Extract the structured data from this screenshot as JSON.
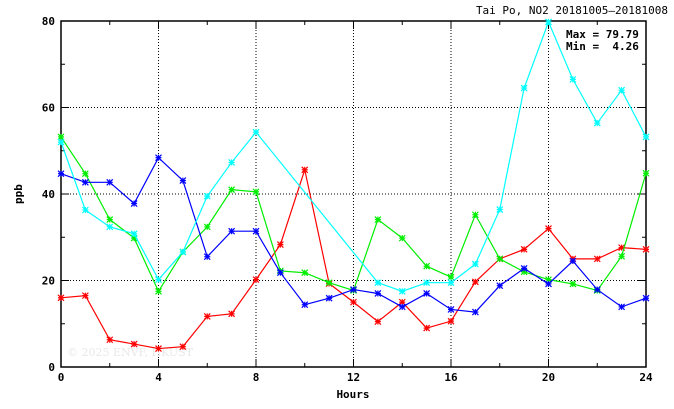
{
  "chart_data": {
    "type": "line",
    "title": "Tai Po, NO2 20181005–20181008",
    "xlabel": "Hours",
    "ylabel": "ppb",
    "xlim": [
      0,
      24
    ],
    "ylim": [
      0,
      80
    ],
    "xticks": [
      0,
      4,
      8,
      12,
      16,
      20,
      24
    ],
    "yticks": [
      0,
      20,
      40,
      60,
      80
    ],
    "grid": true,
    "stats": {
      "max_label": "Max = 79.79",
      "min_label": "Min =  4.26"
    },
    "watermark": "© 2025  ENVF, HKUST",
    "x": [
      0,
      1,
      2,
      3,
      4,
      5,
      6,
      7,
      8,
      9,
      10,
      11,
      12,
      13,
      14,
      15,
      16,
      17,
      18,
      19,
      20,
      21,
      22,
      23,
      24
    ],
    "series": [
      {
        "name": "red",
        "color": "#ff0000",
        "values": [
          16,
          16.5,
          6.3,
          5.3,
          4.26,
          4.7,
          11.7,
          12.3,
          20.2,
          28.3,
          45.6,
          19.3,
          15,
          10.5,
          15,
          9,
          10.6,
          19.7,
          25,
          27.2,
          32,
          25,
          25,
          27.6,
          27.2
        ]
      },
      {
        "name": "green",
        "color": "#00ee00",
        "values": [
          53.2,
          44.7,
          34.1,
          29.8,
          17.5,
          26.6,
          32.4,
          41,
          40.5,
          22.2,
          21.8,
          19.5,
          17.7,
          34.1,
          29.8,
          23.3,
          20.8,
          35.2,
          25,
          22,
          20.2,
          19.2,
          17.7,
          25.6,
          44.8
        ]
      },
      {
        "name": "blue",
        "color": "#0000ff",
        "values": [
          44.7,
          42.7,
          42.7,
          37.8,
          48.4,
          43.1,
          25.5,
          31.4,
          31.4,
          21.8,
          14.4,
          15.9,
          17.9,
          17,
          13.9,
          17,
          13.3,
          12.7,
          18.8,
          22.8,
          19.2,
          24.5,
          17.9,
          13.9,
          15.9
        ]
      },
      {
        "name": "cyan",
        "color": "#00ffff",
        "values": [
          52,
          36.3,
          32.4,
          30.8,
          20.2,
          26.6,
          39.5,
          47.3,
          54.3,
          null,
          null,
          null,
          null,
          19.5,
          17.5,
          19.5,
          19.5,
          23.8,
          36.4,
          64.5,
          79.79,
          66.5,
          56.4,
          64,
          53.2
        ]
      }
    ]
  }
}
